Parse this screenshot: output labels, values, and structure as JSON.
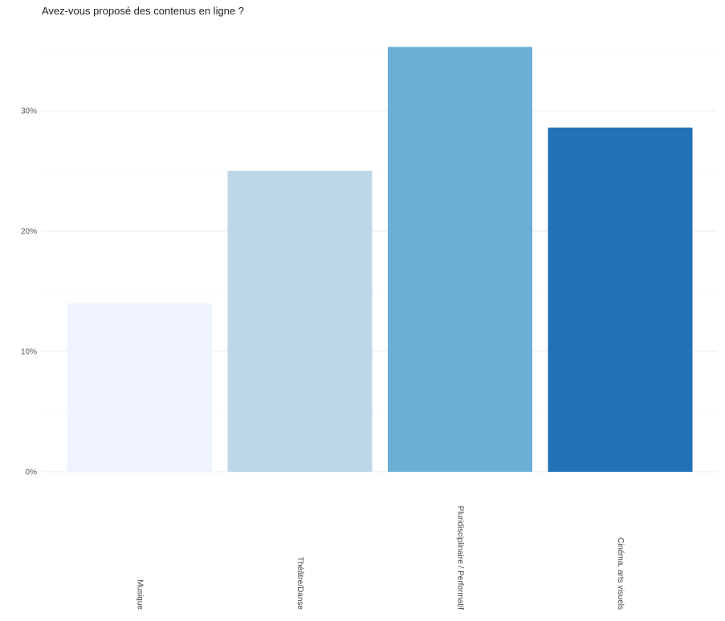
{
  "chart_data": {
    "type": "bar",
    "title": "Avez-vous proposé des contenus en ligne ?",
    "xlabel": "",
    "ylabel": "",
    "categories": [
      "Musique",
      "Théâtre/Danse",
      "Pluridisciplinaire / Performatif",
      "Cinéma, arts visuels"
    ],
    "values": [
      14.0,
      25.0,
      35.3,
      28.6
    ],
    "colors": [
      "#eff3ff",
      "#bdd7e7",
      "#6baed6",
      "#2171b5"
    ],
    "y_ticks": [
      {
        "value": 0,
        "label": "0%"
      },
      {
        "value": 10,
        "label": "10%"
      },
      {
        "value": 20,
        "label": "20%"
      },
      {
        "value": 30,
        "label": "30%"
      }
    ],
    "ylim": [
      0,
      36
    ],
    "grid": true,
    "legend": "none"
  }
}
